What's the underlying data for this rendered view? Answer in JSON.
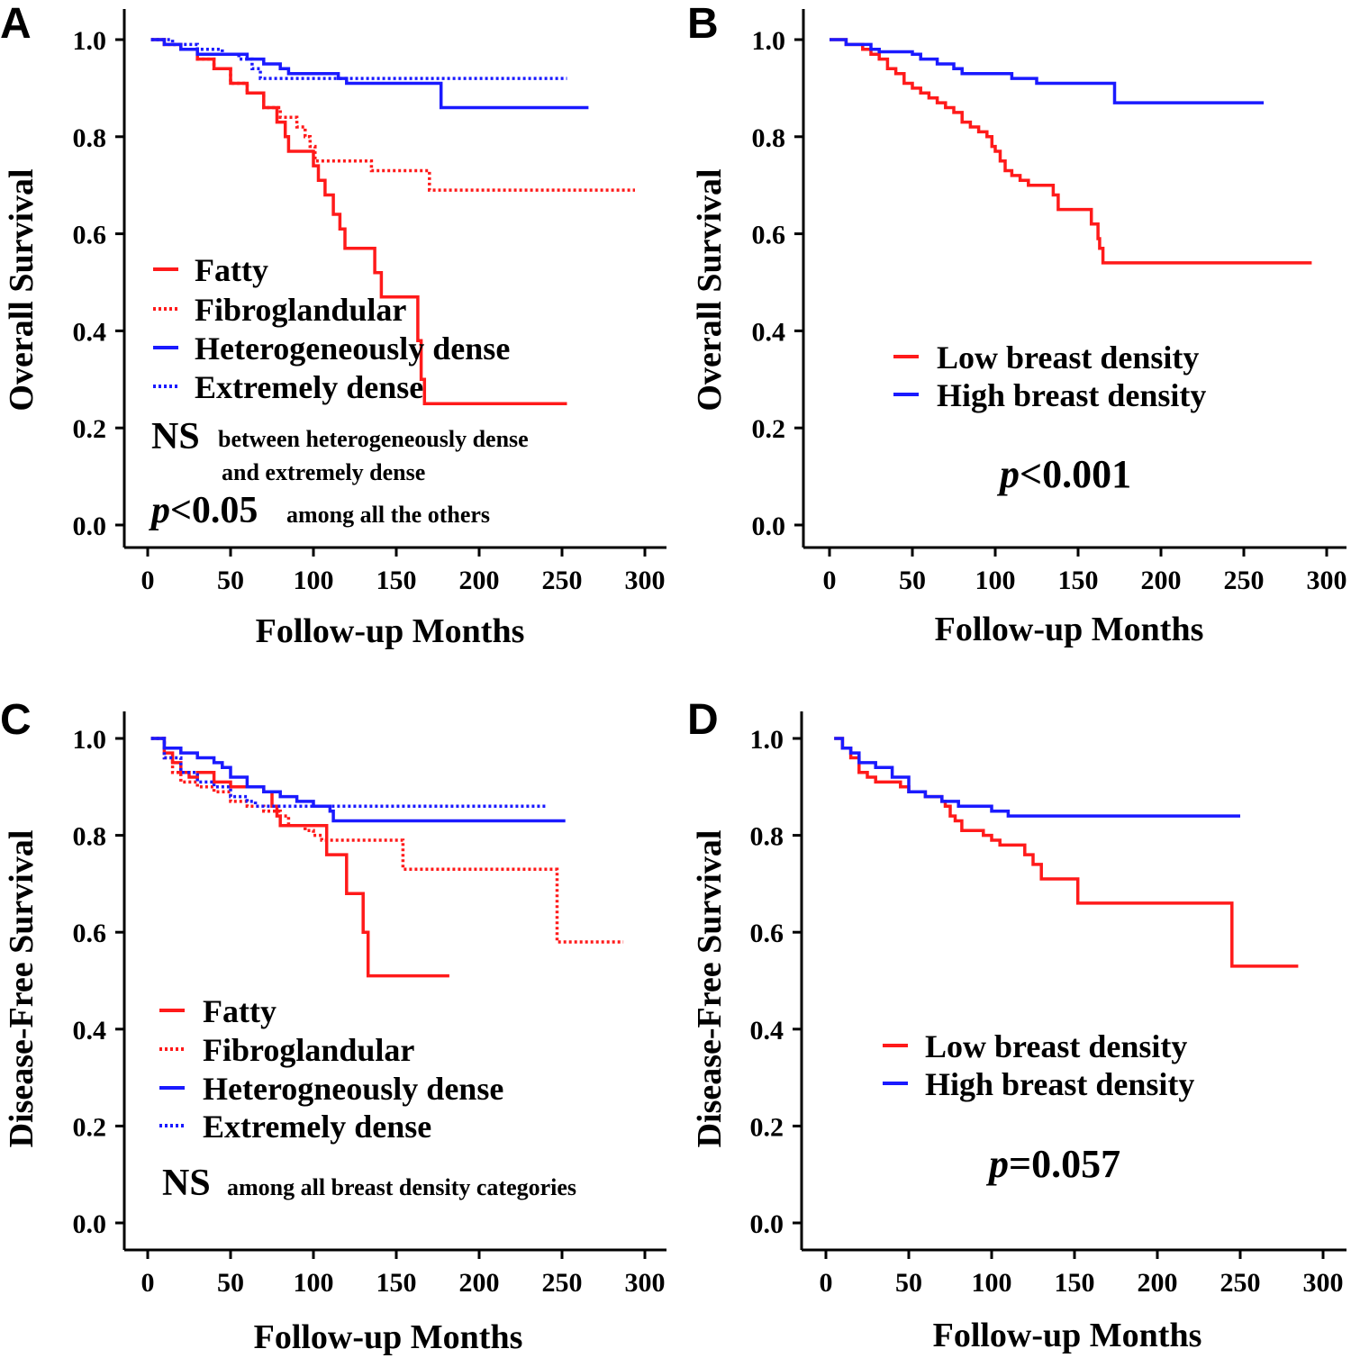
{
  "colors": {
    "red": "#ff1a1a",
    "blue": "#1a1aff",
    "axis": "#000000"
  },
  "chart_data": [
    {
      "id": "A",
      "panel_label": "A",
      "type": "line",
      "ylabel": "Overall Survival",
      "xlabel": "Follow-up Months",
      "xlim": [
        0,
        300
      ],
      "ylim": [
        0,
        1
      ],
      "xticks": [
        "0",
        "50",
        "100",
        "150",
        "200",
        "250",
        "300"
      ],
      "yticks": [
        "0.0",
        "0.2",
        "0.4",
        "0.6",
        "0.8",
        "1.0"
      ],
      "grid": false,
      "legend_position": "center-left",
      "series": [
        {
          "name": "Fatty",
          "color": "red",
          "dash": "solid",
          "steps": [
            [
              2,
              1.0
            ],
            [
              10,
              0.99
            ],
            [
              20,
              0.98
            ],
            [
              30,
              0.96
            ],
            [
              40,
              0.94
            ],
            [
              50,
              0.91
            ],
            [
              60,
              0.89
            ],
            [
              70,
              0.86
            ],
            [
              78,
              0.83
            ],
            [
              83,
              0.8
            ],
            [
              85,
              0.77
            ],
            [
              96,
              0.77
            ],
            [
              100,
              0.74
            ],
            [
              103,
              0.71
            ],
            [
              107,
              0.68
            ],
            [
              112,
              0.64
            ],
            [
              116,
              0.61
            ],
            [
              119,
              0.57
            ],
            [
              134,
              0.57
            ],
            [
              137,
              0.52
            ],
            [
              141,
              0.47
            ],
            [
              159,
              0.47
            ],
            [
              163,
              0.38
            ],
            [
              165,
              0.3
            ],
            [
              167,
              0.25
            ],
            [
              253,
              0.25
            ]
          ]
        },
        {
          "name": "Fibroglandular",
          "color": "red",
          "dash": "dotted",
          "steps": [
            [
              2,
              1.0
            ],
            [
              10,
              0.99
            ],
            [
              20,
              0.98
            ],
            [
              30,
              0.96
            ],
            [
              40,
              0.94
            ],
            [
              50,
              0.91
            ],
            [
              60,
              0.89
            ],
            [
              70,
              0.86
            ],
            [
              80,
              0.84
            ],
            [
              90,
              0.82
            ],
            [
              95,
              0.8
            ],
            [
              98,
              0.78
            ],
            [
              101,
              0.75
            ],
            [
              130,
              0.75
            ],
            [
              135,
              0.73
            ],
            [
              167,
              0.73
            ],
            [
              170,
              0.69
            ],
            [
              294,
              0.69
            ]
          ]
        },
        {
          "name": "Heterogeneously dense",
          "color": "blue",
          "dash": "solid",
          "steps": [
            [
              2,
              1.0
            ],
            [
              10,
              0.99
            ],
            [
              20,
              0.98
            ],
            [
              30,
              0.97
            ],
            [
              50,
              0.97
            ],
            [
              60,
              0.96
            ],
            [
              70,
              0.95
            ],
            [
              80,
              0.94
            ],
            [
              85,
              0.93
            ],
            [
              110,
              0.93
            ],
            [
              115,
              0.92
            ],
            [
              120,
              0.91
            ],
            [
              175,
              0.91
            ],
            [
              177,
              0.86
            ],
            [
              266,
              0.86
            ]
          ]
        },
        {
          "name": "Extremely dense",
          "color": "blue",
          "dash": "dotted",
          "steps": [
            [
              2,
              1.0
            ],
            [
              15,
              0.99
            ],
            [
              30,
              0.98
            ],
            [
              45,
              0.97
            ],
            [
              55,
              0.96
            ],
            [
              63,
              0.94
            ],
            [
              68,
              0.92
            ],
            [
              253,
              0.92
            ]
          ]
        }
      ],
      "notes": [
        {
          "big": "NS",
          "small": "between heterogeneously dense"
        },
        {
          "big": "",
          "small": "and extremely dense"
        },
        {
          "big": "p",
          "big2": "<0.05",
          "small": "among all the others"
        }
      ]
    },
    {
      "id": "B",
      "panel_label": "B",
      "type": "line",
      "ylabel": "Overall Survival",
      "xlabel": "Follow-up Months",
      "xlim": [
        0,
        300
      ],
      "ylim": [
        0,
        1
      ],
      "xticks": [
        "0",
        "50",
        "100",
        "150",
        "200",
        "250",
        "300"
      ],
      "yticks": [
        "0.0",
        "0.2",
        "0.4",
        "0.6",
        "0.8",
        "1.0"
      ],
      "grid": false,
      "legend_position": "center-right",
      "series": [
        {
          "name": "Low breast density",
          "color": "red",
          "dash": "solid",
          "steps": [
            [
              0,
              1.0
            ],
            [
              10,
              0.99
            ],
            [
              20,
              0.98
            ],
            [
              25,
              0.97
            ],
            [
              30,
              0.96
            ],
            [
              35,
              0.94
            ],
            [
              40,
              0.93
            ],
            [
              45,
              0.91
            ],
            [
              50,
              0.9
            ],
            [
              55,
              0.89
            ],
            [
              60,
              0.88
            ],
            [
              65,
              0.87
            ],
            [
              70,
              0.86
            ],
            [
              75,
              0.85
            ],
            [
              80,
              0.83
            ],
            [
              85,
              0.82
            ],
            [
              90,
              0.81
            ],
            [
              95,
              0.8
            ],
            [
              98,
              0.78
            ],
            [
              100,
              0.77
            ],
            [
              103,
              0.75
            ],
            [
              106,
              0.73
            ],
            [
              110,
              0.72
            ],
            [
              115,
              0.71
            ],
            [
              120,
              0.7
            ],
            [
              135,
              0.68
            ],
            [
              138,
              0.65
            ],
            [
              155,
              0.65
            ],
            [
              158,
              0.62
            ],
            [
              162,
              0.59
            ],
            [
              163,
              0.57
            ],
            [
              165,
              0.54
            ],
            [
              291,
              0.54
            ]
          ]
        },
        {
          "name": "High breast density",
          "color": "blue",
          "dash": "solid",
          "steps": [
            [
              0,
              1.0
            ],
            [
              10,
              0.99
            ],
            [
              25,
              0.98
            ],
            [
              30,
              0.975
            ],
            [
              50,
              0.97
            ],
            [
              55,
              0.96
            ],
            [
              65,
              0.95
            ],
            [
              75,
              0.94
            ],
            [
              80,
              0.93
            ],
            [
              105,
              0.93
            ],
            [
              110,
              0.92
            ],
            [
              125,
              0.91
            ],
            [
              170,
              0.91
            ],
            [
              172,
              0.87
            ],
            [
              262,
              0.87
            ]
          ]
        }
      ],
      "notes": [
        {
          "big": "p",
          "big2": "<0.001",
          "small": ""
        }
      ]
    },
    {
      "id": "C",
      "panel_label": "C",
      "type": "line",
      "ylabel": "Disease-Free Survival",
      "xlabel": "Follow-up Months",
      "xlim": [
        0,
        300
      ],
      "ylim": [
        0,
        1
      ],
      "xticks": [
        "0",
        "50",
        "100",
        "150",
        "200",
        "250",
        "300"
      ],
      "yticks": [
        "0.0",
        "0.2",
        "0.4",
        "0.6",
        "0.8",
        "1.0"
      ],
      "grid": false,
      "legend_position": "bottom-left",
      "series": [
        {
          "name": "Fatty",
          "color": "red",
          "dash": "solid",
          "steps": [
            [
              2,
              1.0
            ],
            [
              10,
              0.97
            ],
            [
              15,
              0.95
            ],
            [
              20,
              0.93
            ],
            [
              25,
              0.92
            ],
            [
              30,
              0.93
            ],
            [
              40,
              0.91
            ],
            [
              50,
              0.9
            ],
            [
              70,
              0.89
            ],
            [
              75,
              0.86
            ],
            [
              78,
              0.84
            ],
            [
              80,
              0.82
            ],
            [
              105,
              0.82
            ],
            [
              108,
              0.76
            ],
            [
              118,
              0.76
            ],
            [
              120,
              0.68
            ],
            [
              128,
              0.68
            ],
            [
              130,
              0.6
            ],
            [
              133,
              0.51
            ],
            [
              182,
              0.51
            ]
          ]
        },
        {
          "name": "Fibroglandular",
          "color": "red",
          "dash": "dotted",
          "steps": [
            [
              2,
              1.0
            ],
            [
              10,
              0.96
            ],
            [
              15,
              0.93
            ],
            [
              20,
              0.91
            ],
            [
              30,
              0.9
            ],
            [
              40,
              0.89
            ],
            [
              50,
              0.87
            ],
            [
              60,
              0.86
            ],
            [
              70,
              0.85
            ],
            [
              80,
              0.84
            ],
            [
              85,
              0.82
            ],
            [
              95,
              0.81
            ],
            [
              100,
              0.8
            ],
            [
              105,
              0.79
            ],
            [
              152,
              0.79
            ],
            [
              154,
              0.73
            ],
            [
              245,
              0.73
            ],
            [
              247,
              0.58
            ],
            [
              287,
              0.58
            ]
          ]
        },
        {
          "name": "Heterogeneously dense",
          "color": "blue",
          "dash": "solid",
          "steps": [
            [
              2,
              1.0
            ],
            [
              10,
              0.98
            ],
            [
              20,
              0.97
            ],
            [
              30,
              0.96
            ],
            [
              40,
              0.95
            ],
            [
              45,
              0.94
            ],
            [
              50,
              0.92
            ],
            [
              60,
              0.9
            ],
            [
              70,
              0.89
            ],
            [
              80,
              0.88
            ],
            [
              90,
              0.87
            ],
            [
              100,
              0.86
            ],
            [
              110,
              0.85
            ],
            [
              112,
              0.83
            ],
            [
              252,
              0.83
            ]
          ]
        },
        {
          "name": "Extremely dense",
          "color": "blue",
          "dash": "dotted",
          "steps": [
            [
              2,
              1.0
            ],
            [
              10,
              0.96
            ],
            [
              20,
              0.93
            ],
            [
              30,
              0.91
            ],
            [
              40,
              0.9
            ],
            [
              50,
              0.88
            ],
            [
              60,
              0.87
            ],
            [
              65,
              0.86
            ],
            [
              240,
              0.86
            ]
          ]
        }
      ],
      "legend_labels": [
        "Fatty",
        "Fibroglandular",
        "Heterogneously dense",
        "Extremely dense"
      ],
      "notes": [
        {
          "big": "NS",
          "small": "among all breast density categories"
        }
      ]
    },
    {
      "id": "D",
      "panel_label": "D",
      "type": "line",
      "ylabel": "Disease-Free Survival",
      "xlabel": "Follow-up Months",
      "xlim": [
        0,
        300
      ],
      "ylim": [
        0,
        1
      ],
      "xticks": [
        "0",
        "50",
        "100",
        "150",
        "200",
        "250",
        "300"
      ],
      "yticks": [
        "0.0",
        "0.2",
        "0.4",
        "0.6",
        "0.8",
        "1.0"
      ],
      "grid": false,
      "legend_position": "center-right",
      "series": [
        {
          "name": "Low breast density",
          "color": "red",
          "dash": "solid",
          "steps": [
            [
              5,
              1.0
            ],
            [
              10,
              0.98
            ],
            [
              15,
              0.96
            ],
            [
              20,
              0.93
            ],
            [
              25,
              0.92
            ],
            [
              30,
              0.91
            ],
            [
              45,
              0.9
            ],
            [
              50,
              0.89
            ],
            [
              60,
              0.88
            ],
            [
              70,
              0.87
            ],
            [
              72,
              0.86
            ],
            [
              75,
              0.84
            ],
            [
              78,
              0.83
            ],
            [
              82,
              0.81
            ],
            [
              92,
              0.81
            ],
            [
              95,
              0.8
            ],
            [
              100,
              0.79
            ],
            [
              105,
              0.78
            ],
            [
              120,
              0.76
            ],
            [
              125,
              0.74
            ],
            [
              130,
              0.71
            ],
            [
              150,
              0.71
            ],
            [
              152,
              0.66
            ],
            [
              243,
              0.66
            ],
            [
              245,
              0.53
            ],
            [
              285,
              0.53
            ]
          ]
        },
        {
          "name": "High breast density",
          "color": "blue",
          "dash": "solid",
          "steps": [
            [
              5,
              1.0
            ],
            [
              10,
              0.98
            ],
            [
              15,
              0.97
            ],
            [
              20,
              0.95
            ],
            [
              30,
              0.94
            ],
            [
              40,
              0.92
            ],
            [
              50,
              0.89
            ],
            [
              60,
              0.88
            ],
            [
              70,
              0.87
            ],
            [
              80,
              0.86
            ],
            [
              90,
              0.86
            ],
            [
              100,
              0.85
            ],
            [
              110,
              0.84
            ],
            [
              112,
              0.84
            ],
            [
              250,
              0.84
            ]
          ]
        }
      ],
      "notes": [
        {
          "big": "p",
          "big2": "=0.057",
          "small": ""
        }
      ]
    }
  ]
}
